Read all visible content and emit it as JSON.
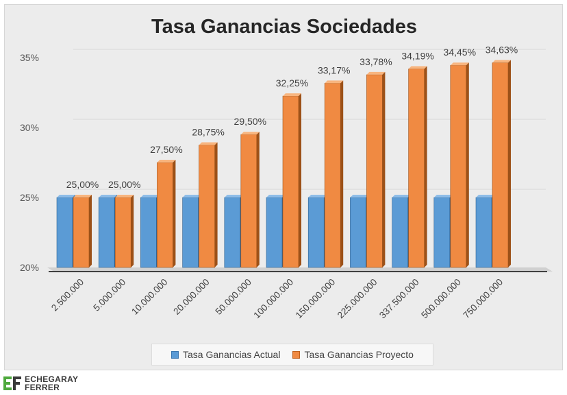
{
  "colors": {
    "actual_front": "#5b9bd5",
    "actual_light": "#8fbde8",
    "actual_dark": "#2e5f8e",
    "proyecto_front": "#f08a42",
    "proyecto_light": "#f8b57f",
    "proyecto_dark": "#9c5118",
    "brand_green": "#4ea93d"
  },
  "chart_data": {
    "type": "bar",
    "title": "Tasa Ganancias Sociedades",
    "xlabel": "",
    "ylabel": "",
    "ylim": [
      20,
      35
    ],
    "yticks": [
      "20%",
      "25%",
      "30%",
      "35%"
    ],
    "ytick_values": [
      20,
      25,
      30,
      35
    ],
    "categories": [
      "2.500.000",
      "5.000.000",
      "10.000.000",
      "20.000.000",
      "50.000.000",
      "100.000.000",
      "150.000.000",
      "225.000.000",
      "337.500.000",
      "500.000.000",
      "750.000.000"
    ],
    "series": [
      {
        "name": "Tasa Ganancias Actual",
        "values": [
          25,
          25,
          25,
          25,
          25,
          25,
          25,
          25,
          25,
          25,
          25
        ]
      },
      {
        "name": "Tasa Ganancias Proyecto",
        "values": [
          25,
          25,
          27.5,
          28.75,
          29.5,
          32.25,
          33.17,
          33.78,
          34.19,
          34.45,
          34.63
        ],
        "labels": [
          "25,00%",
          "25,00%",
          "27,50%",
          "28,75%",
          "29,50%",
          "32,25%",
          "33,17%",
          "33,78%",
          "34,19%",
          "34,45%",
          "34,63%"
        ]
      }
    ],
    "legend_position": "bottom"
  },
  "logo": {
    "line1": "ECHEGARAY",
    "line2": "FERRER"
  }
}
